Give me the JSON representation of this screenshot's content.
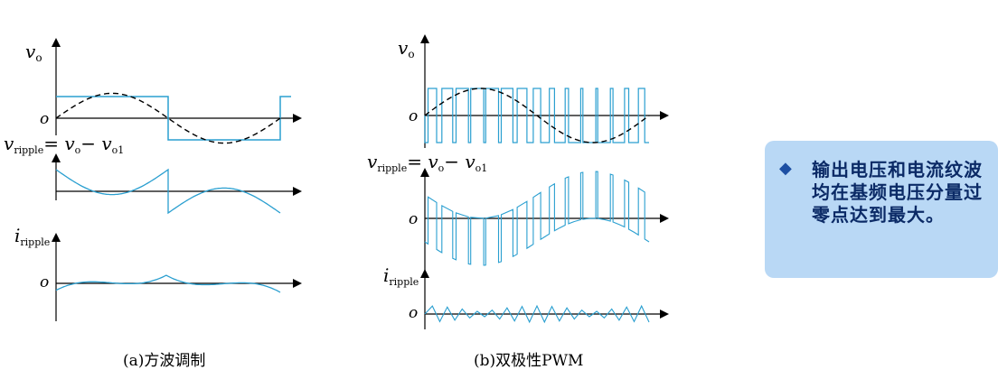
{
  "panel_a": {
    "caption": "(a)方波调制",
    "vo_label": "v",
    "vo_sub": "o",
    "origin_label": "o",
    "vripple_label": "v",
    "vripple_sub": "ripple",
    "vripple_eq": "= v",
    "vripple_eq_sub": "o",
    "vripple_minus": "− v",
    "vripple_minus_sub": "o1",
    "iripple_label": "i",
    "iripple_sub": "ripple"
  },
  "panel_b": {
    "caption": "(b)双极性PWM",
    "vo_label": "v",
    "vo_sub": "o",
    "origin_label": "o",
    "vripple_label": "v",
    "vripple_sub": "ripple",
    "vripple_eq": "= v",
    "vripple_eq_sub": "o",
    "vripple_minus": "− v",
    "vripple_minus_sub": "o1",
    "iripple_label": "i",
    "iripple_sub": "ripple"
  },
  "note": {
    "bullet": "◆",
    "text": "输出电压和电流纹波均在基频电压分量过零点达到最大。"
  },
  "colors": {
    "waveform": "#2a9fd0",
    "fundamental": "#000000",
    "axis": "#000000",
    "note_bg": "#b9d8f5",
    "note_text": "#0b2a66"
  }
}
